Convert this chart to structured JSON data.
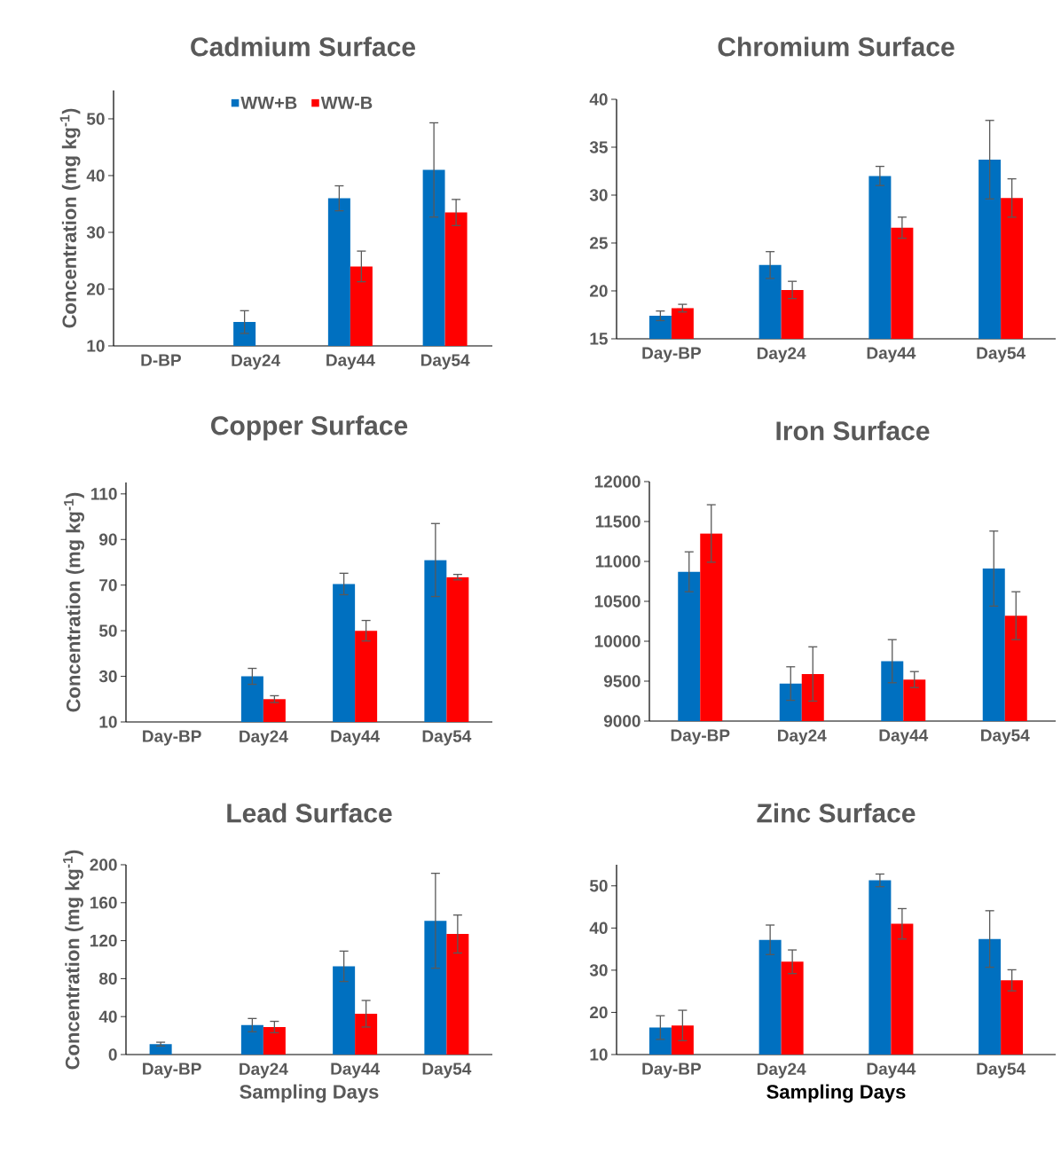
{
  "chart_data": [
    {
      "type": "bar",
      "title": "Cadmium Surface",
      "ylabel": "Concentration (mg kg$^{-1}$)",
      "categories": [
        "D-BP",
        "Day24",
        "Day44",
        "Day54"
      ],
      "legend": "top",
      "ylim": [
        10,
        55
      ],
      "yticks": [
        10,
        20,
        30,
        40,
        50
      ],
      "series": [
        {
          "name": "WW+B",
          "color": "#0070c0",
          "values": [
            10,
            14.2,
            36,
            41
          ],
          "errors": [
            null,
            2,
            2.2,
            8.3
          ]
        },
        {
          "name": "WW-B",
          "color": "#ff0000",
          "values": [
            10,
            10,
            24,
            33.5
          ],
          "errors": [
            null,
            null,
            2.7,
            2.3
          ]
        }
      ]
    },
    {
      "type": "bar",
      "title": "Chromium Surface",
      "categories": [
        "Day-BP",
        "Day24",
        "Day44",
        "Day54"
      ],
      "ylim": [
        15,
        40
      ],
      "yticks": [
        15,
        20,
        25,
        30,
        35,
        40
      ],
      "series": [
        {
          "color": "#0070c0",
          "values": [
            17.4,
            22.7,
            32,
            33.7
          ],
          "errors": [
            0.5,
            1.4,
            1,
            4.1
          ]
        },
        {
          "color": "#ff0000",
          "values": [
            18.2,
            20.1,
            26.6,
            29.7
          ],
          "errors": [
            0.4,
            0.9,
            1.1,
            2
          ]
        }
      ]
    },
    {
      "type": "bar",
      "title": "Copper Surface",
      "ylabel": "Concentration (mg kg$^{-1}$)",
      "categories": [
        "Day-BP",
        "Day24",
        "Day44",
        "Day54"
      ],
      "ylim": [
        10,
        115
      ],
      "yticks": [
        10,
        30,
        50,
        70,
        90,
        110
      ],
      "series": [
        {
          "color": "#0070c0",
          "values": [
            10,
            30,
            70.5,
            81
          ],
          "errors": [
            null,
            3.5,
            4.7,
            16
          ]
        },
        {
          "color": "#ff0000",
          "values": [
            10,
            20,
            50,
            73.5
          ],
          "errors": [
            null,
            1.5,
            4.5,
            1.2
          ]
        }
      ]
    },
    {
      "type": "bar",
      "title": "Iron Surface",
      "categories": [
        "Day-BP",
        "Day24",
        "Day44",
        "Day54"
      ],
      "ylim": [
        9000,
        12000
      ],
      "yticks": [
        9000,
        9500,
        10000,
        10500,
        11000,
        11500,
        12000
      ],
      "series": [
        {
          "color": "#0070c0",
          "values": [
            10870,
            9470,
            9750,
            10910
          ],
          "errors": [
            250,
            210,
            270,
            470
          ]
        },
        {
          "color": "#ff0000",
          "values": [
            11350,
            9590,
            9520,
            10320
          ],
          "errors": [
            360,
            340,
            100,
            300
          ]
        }
      ]
    },
    {
      "type": "bar",
      "title": "Lead Surface",
      "ylabel": "Concentration (mg kg$^{-1}$)",
      "xlabel": "Sampling Days",
      "categories": [
        "Day-BP",
        "Day24",
        "Day44",
        "Day54"
      ],
      "ylim": [
        0,
        200
      ],
      "yticks": [
        0,
        40,
        80,
        120,
        160,
        200
      ],
      "series": [
        {
          "color": "#0070c0",
          "values": [
            11,
            31,
            93,
            141
          ],
          "errors": [
            2,
            7,
            16,
            50
          ]
        },
        {
          "color": "#ff0000",
          "values": [
            0,
            29,
            43,
            127
          ],
          "errors": [
            null,
            6,
            14,
            20
          ]
        }
      ]
    },
    {
      "type": "bar",
      "title": "Zinc Surface",
      "xlabel": "Sampling Days",
      "categories": [
        "Day-BP",
        "Day24",
        "Day44",
        "Day54"
      ],
      "ylim": [
        10,
        55
      ],
      "yticks": [
        10,
        20,
        30,
        40,
        50
      ],
      "series": [
        {
          "color": "#0070c0",
          "values": [
            16.4,
            37.2,
            51.3,
            37.4
          ],
          "errors": [
            2.8,
            3.5,
            1.5,
            6.7
          ]
        },
        {
          "color": "#ff0000",
          "values": [
            16.9,
            32,
            41,
            27.6
          ],
          "errors": [
            3.6,
            2.8,
            3.6,
            2.5
          ]
        }
      ]
    }
  ]
}
